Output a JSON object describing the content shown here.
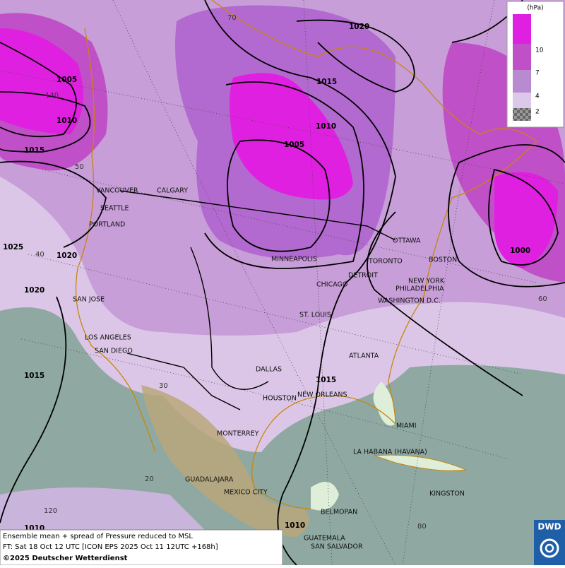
{
  "map": {
    "cities": [
      "VANCOUVER",
      "CALGARY",
      "SEATTLE",
      "PORTLAND",
      "MINNEAPOLIS",
      "OTTAWA",
      "TORONTO",
      "BOSTON",
      "DETROIT",
      "NEW YORK",
      "PHILADELPHIA",
      "CHICAGO",
      "WASHINGTON D.C.",
      "SAN JOSE",
      "ST. LOUIS",
      "LOS ANGELES",
      "SAN DIEGO",
      "ATLANTA",
      "DALLAS",
      "NEW ORLEANS",
      "HOUSTON",
      "MIAMI",
      "MONTERREY",
      "LA HABANA (HAVANA)",
      "GUADALAJARA",
      "MEXICO CITY",
      "KINGSTON",
      "BELMOPAN",
      "GUATEMALA",
      "SAN SALVADOR"
    ],
    "isobar_labels": [
      "1020",
      "1005",
      "1015",
      "1010",
      "1010",
      "1005",
      "1015",
      "1025",
      "1020",
      "1000",
      "1020",
      "1015",
      "1015",
      "1010",
      "1010"
    ],
    "graticule_labels": [
      "70",
      "140",
      "50",
      "40",
      "60",
      "30",
      "20",
      "120",
      "80"
    ]
  },
  "legend": {
    "unit": "(hPa)",
    "levels": [
      "10",
      "7",
      "4",
      "2"
    ]
  },
  "footer": {
    "lines": [
      "Ensemble mean + spread of Pressure reduced to MSL",
      "FT: Sat 18 Oct 12 UTC [ICON EPS 2025 Oct 11 12UTC +168h]",
      "©2025 Deutscher Wetterdienst"
    ]
  },
  "logo": {
    "text": "DWD"
  }
}
